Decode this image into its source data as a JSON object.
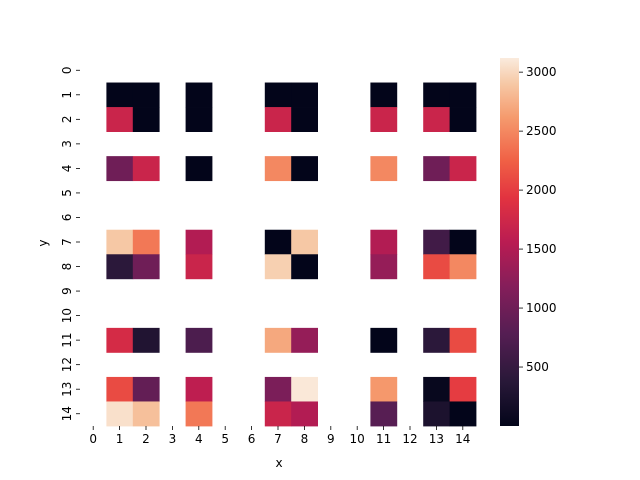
{
  "chart_data": {
    "type": "heatmap",
    "title": "",
    "xlabel": "x",
    "ylabel": "y",
    "x_ticks": [
      "0",
      "1",
      "2",
      "3",
      "4",
      "5",
      "6",
      "7",
      "8",
      "9",
      "10",
      "11",
      "12",
      "13",
      "14"
    ],
    "y_ticks": [
      "0",
      "1",
      "2",
      "3",
      "4",
      "5",
      "6",
      "7",
      "8",
      "9",
      "10",
      "11",
      "12",
      "13",
      "14"
    ],
    "colormap": "rocket",
    "vmin": 0,
    "vmax": 3120,
    "colorbar_ticks": [
      "500",
      "1000",
      "1500",
      "2000",
      "2500",
      "3000"
    ],
    "colorbar_tick_values": [
      500,
      1000,
      1500,
      2000,
      2500,
      3000
    ],
    "note_missing": "null = empty cell",
    "values": [
      [
        null,
        null,
        null,
        null,
        null,
        null,
        null,
        null,
        null,
        null,
        null,
        null,
        null,
        null,
        null
      ],
      [
        null,
        0,
        0,
        null,
        0,
        null,
        null,
        0,
        0,
        null,
        null,
        0,
        null,
        0,
        0
      ],
      [
        null,
        1700,
        0,
        null,
        0,
        null,
        null,
        1700,
        0,
        null,
        null,
        1700,
        null,
        1700,
        0
      ],
      [
        null,
        null,
        null,
        null,
        null,
        null,
        null,
        null,
        null,
        null,
        null,
        null,
        null,
        null,
        null
      ],
      [
        null,
        1000,
        1700,
        null,
        0,
        null,
        null,
        2500,
        0,
        null,
        null,
        2500,
        null,
        1000,
        1700
      ],
      [
        null,
        null,
        null,
        null,
        null,
        null,
        null,
        null,
        null,
        null,
        null,
        null,
        null,
        null,
        null
      ],
      [
        null,
        null,
        null,
        null,
        null,
        null,
        null,
        null,
        null,
        null,
        null,
        null,
        null,
        null,
        null
      ],
      [
        null,
        2900,
        2400,
        null,
        1500,
        null,
        null,
        0,
        2900,
        null,
        null,
        1500,
        null,
        600,
        0
      ],
      [
        null,
        400,
        1000,
        null,
        1700,
        null,
        null,
        2950,
        0,
        null,
        null,
        1300,
        null,
        2100,
        2500
      ],
      [
        null,
        null,
        null,
        null,
        null,
        null,
        null,
        null,
        null,
        null,
        null,
        null,
        null,
        null,
        null
      ],
      [
        null,
        null,
        null,
        null,
        null,
        null,
        null,
        null,
        null,
        null,
        null,
        null,
        null,
        null,
        null
      ],
      [
        null,
        1800,
        300,
        null,
        700,
        null,
        null,
        2700,
        1300,
        null,
        null,
        0,
        null,
        400,
        2100
      ],
      [
        null,
        null,
        null,
        null,
        null,
        null,
        null,
        null,
        null,
        null,
        null,
        null,
        null,
        null,
        null
      ],
      [
        null,
        2100,
        900,
        null,
        1600,
        null,
        null,
        1100,
        3100,
        null,
        null,
        2600,
        null,
        50,
        2000
      ],
      [
        null,
        3050,
        2850,
        null,
        2400,
        null,
        null,
        1700,
        1500,
        null,
        null,
        800,
        null,
        250,
        0
      ]
    ]
  }
}
